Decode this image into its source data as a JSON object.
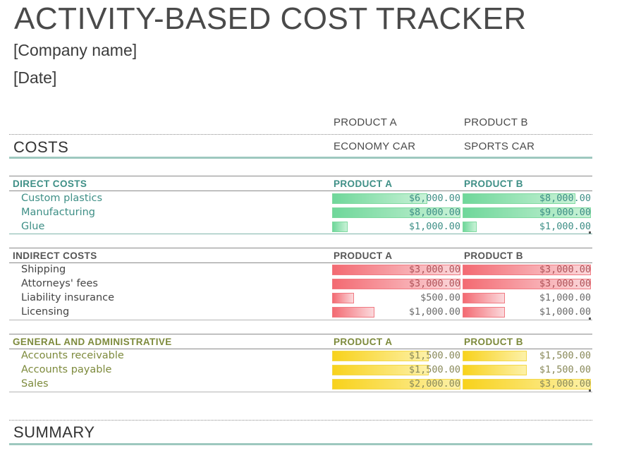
{
  "title": "ACTIVITY-BASED COST TRACKER",
  "company": "[Company name]",
  "date": "[Date]",
  "products": [
    {
      "header": "PRODUCT A",
      "description": "ECONOMY CAR"
    },
    {
      "header": "PRODUCT B",
      "description": "SPORTS CAR"
    }
  ],
  "costs_label": "COSTS",
  "summary_label": "SUMMARY",
  "groups": [
    {
      "label": "DIRECT COSTS",
      "col_a": "PRODUCT A",
      "col_b": "PRODUCT B",
      "color": "#3e8f86",
      "rows": [
        {
          "label": "Custom plastics",
          "a": "$6,000.00",
          "b": "$8,000.00",
          "a_fill": 0.74,
          "b_fill": 0.88
        },
        {
          "label": "Manufacturing",
          "a": "$8,000.00",
          "b": "$9,000.00",
          "a_fill": 1.0,
          "b_fill": 1.0
        },
        {
          "label": "Glue",
          "a": "$1,000.00",
          "b": "$1,000.00",
          "a_fill": 0.12,
          "b_fill": 0.11
        }
      ]
    },
    {
      "label": "INDIRECT COSTS",
      "col_a": "PRODUCT A",
      "col_b": "PRODUCT B",
      "color": "#555555",
      "rows": [
        {
          "label": "Shipping",
          "a": "$3,000.00",
          "b": "$3,000.00",
          "a_fill": 1.0,
          "b_fill": 1.0
        },
        {
          "label": "Attorneys' fees",
          "a": "$3,000.00",
          "b": "$3,000.00",
          "a_fill": 1.0,
          "b_fill": 1.0
        },
        {
          "label": "Liability insurance",
          "a": "$500.00",
          "b": "$1,000.00",
          "a_fill": 0.17,
          "b_fill": 0.33
        },
        {
          "label": "Licensing",
          "a": "$1,000.00",
          "b": "$1,000.00",
          "a_fill": 0.33,
          "b_fill": 0.33
        }
      ]
    },
    {
      "label": "GENERAL AND ADMINISTRATIVE",
      "col_a": "PRODUCT A",
      "col_b": "PRODUCT B",
      "color": "#7d8a3c",
      "rows": [
        {
          "label": "Accounts receivable",
          "a": "$1,500.00",
          "b": "$1,500.00",
          "a_fill": 0.75,
          "b_fill": 0.5
        },
        {
          "label": "Accounts payable",
          "a": "$1,500.00",
          "b": "$1,500.00",
          "a_fill": 0.75,
          "b_fill": 0.5
        },
        {
          "label": "Sales",
          "a": "$2,000.00",
          "b": "$3,000.00",
          "a_fill": 1.0,
          "b_fill": 1.0
        }
      ]
    }
  ]
}
